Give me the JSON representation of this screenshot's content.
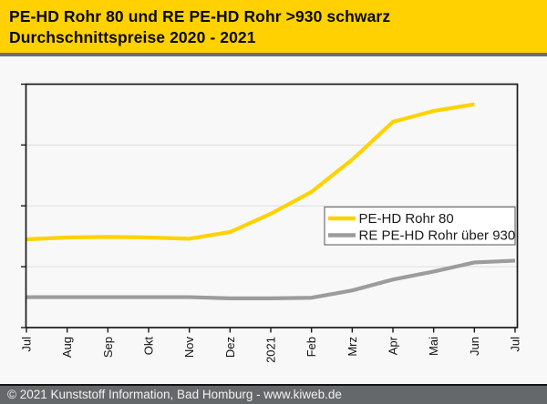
{
  "header": {
    "title_line1": "PE-HD Rohr 80 und RE PE-HD Rohr >930 schwarz",
    "title_line2": "Durchschnittspreise 2020 - 2021"
  },
  "footer": {
    "text": "© 2021 Kunststoff Information, Bad Homburg - www.kiweb.de"
  },
  "colors": {
    "header_bg": "#FFD100",
    "header_separator": "#6E6E6E",
    "body_bg": "#F8F8F8",
    "plot_border": "#1A1A1A",
    "gridline": "#DDDDDD",
    "axis_text": "#111111",
    "legend_border": "#707070",
    "legend_bg": "#FFFFFF",
    "footer_bg": "#65686A",
    "footer_text": "#F2F2F2",
    "series_yellow": "#FFD200",
    "series_gray": "#9C9C9C"
  },
  "chart_data": {
    "type": "line",
    "title": "PE-HD Rohr 80 und RE PE-HD Rohr >930 schwarz — Durchschnittspreise 2020 - 2021",
    "x_tick_labels": [
      "Jul",
      "Aug",
      "Sep",
      "Okt",
      "Nov",
      "Dez",
      "2021",
      "Feb",
      "Mrz",
      "Apr",
      "Mai",
      "Jun",
      "Jul"
    ],
    "xlabel": "",
    "ylabel": "",
    "y_axis": {
      "tick_labels_visible": false,
      "note": "y axis has tick marks and gridlines but no numeric labels; series values below are normalized gridline units",
      "ylim": [
        0,
        4
      ],
      "gridline_values": [
        1,
        2,
        3
      ],
      "grid": true
    },
    "legend": {
      "position": "center-right-inside"
    },
    "series": [
      {
        "name": "RE PE-HD Rohr über 930",
        "color": "#9C9C9C",
        "values": [
          0.5,
          0.5,
          0.5,
          0.5,
          0.5,
          0.48,
          0.48,
          0.49,
          0.61,
          0.79,
          0.92,
          1.07,
          1.1
        ]
      },
      {
        "name": "PE-HD Rohr 80",
        "color": "#FFD200",
        "values": [
          1.45,
          1.48,
          1.49,
          1.48,
          1.46,
          1.57,
          1.87,
          2.23,
          2.76,
          3.38,
          3.56,
          3.67
        ]
      }
    ],
    "legend_order": [
      "PE-HD Rohr 80",
      "RE PE-HD Rohr über 930"
    ]
  }
}
